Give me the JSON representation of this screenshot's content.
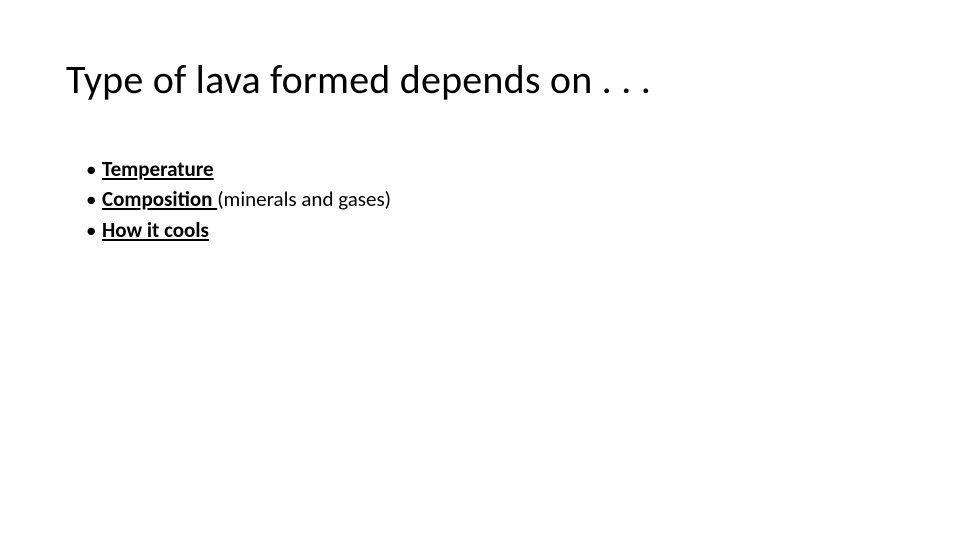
{
  "slide": {
    "title": "Type of lava formed depends on . . .",
    "title_fontsize": 40,
    "title_fontweight": 300,
    "bullets": [
      {
        "strong": "Temperature",
        "rest": ""
      },
      {
        "strong": "Composition ",
        "rest": "(minerals and gases)"
      },
      {
        "strong": "How it cools",
        "rest": ""
      }
    ],
    "bullet_fontsize": 21,
    "text_color": "#000000",
    "background_color": "#ffffff"
  }
}
